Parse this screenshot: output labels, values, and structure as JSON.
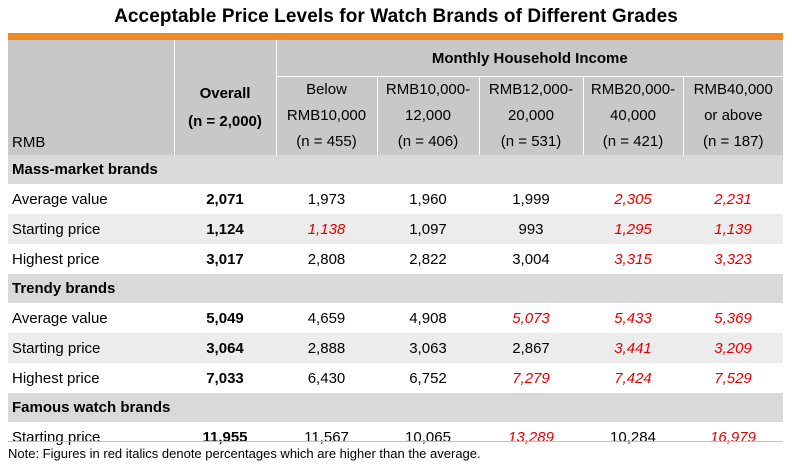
{
  "title": "Acceptable Price Levels for Watch Brands of Different Grades",
  "header": {
    "income_title": "Monthly Household Income",
    "rmb_label": "RMB",
    "overall": [
      "Overall",
      "(n = 2,000)"
    ],
    "columns": [
      [
        "Below",
        "RMB10,000",
        "(n = 455)"
      ],
      [
        "RMB10,000-",
        "12,000",
        "(n = 406)"
      ],
      [
        "RMB12,000-",
        "20,000",
        "(n = 531)"
      ],
      [
        "RMB20,000-",
        "40,000",
        "(n = 421)"
      ],
      [
        "RMB40,000",
        "or above",
        "(n = 187)"
      ]
    ]
  },
  "sections": [
    {
      "name": "Mass-market brands",
      "rows": [
        {
          "label": "Average value",
          "overall": "2,071",
          "values": [
            "1,973",
            "1,960",
            "1,999",
            "2,305",
            "2,231"
          ],
          "red": [
            false,
            false,
            false,
            true,
            true
          ]
        },
        {
          "label": "Starting price",
          "overall": "1,124",
          "values": [
            "1,138",
            "1,097",
            "993",
            "1,295",
            "1,139"
          ],
          "red": [
            true,
            false,
            false,
            true,
            true
          ]
        },
        {
          "label": "Highest price",
          "overall": "3,017",
          "values": [
            "2,808",
            "2,822",
            "3,004",
            "3,315",
            "3,323"
          ],
          "red": [
            false,
            false,
            false,
            true,
            true
          ]
        }
      ]
    },
    {
      "name": "Trendy brands",
      "rows": [
        {
          "label": "Average value",
          "overall": "5,049",
          "values": [
            "4,659",
            "4,908",
            "5,073",
            "5,433",
            "5,369"
          ],
          "red": [
            false,
            false,
            true,
            true,
            true
          ]
        },
        {
          "label": "Starting price",
          "overall": "3,064",
          "values": [
            "2,888",
            "3,063",
            "2,867",
            "3,441",
            "3,209"
          ],
          "red": [
            false,
            false,
            false,
            true,
            true
          ]
        },
        {
          "label": "Highest price",
          "overall": "7,033",
          "values": [
            "6,430",
            "6,752",
            "7,279",
            "7,424",
            "7,529"
          ],
          "red": [
            false,
            false,
            true,
            true,
            true
          ]
        }
      ]
    },
    {
      "name": "Famous watch brands",
      "rows": [
        {
          "label": "Starting price",
          "overall": "11,955",
          "values": [
            "11,567",
            "10,065",
            "13,289",
            "10,284",
            "16,979"
          ],
          "red": [
            false,
            false,
            true,
            false,
            true
          ]
        }
      ]
    }
  ],
  "note": "Note: Figures in red italics denote percentages which are higher than the average.",
  "colors": {
    "accent_bar": "#ef8a20",
    "highlight_text": "#e00000",
    "header_bg": "#c8c8c8"
  }
}
